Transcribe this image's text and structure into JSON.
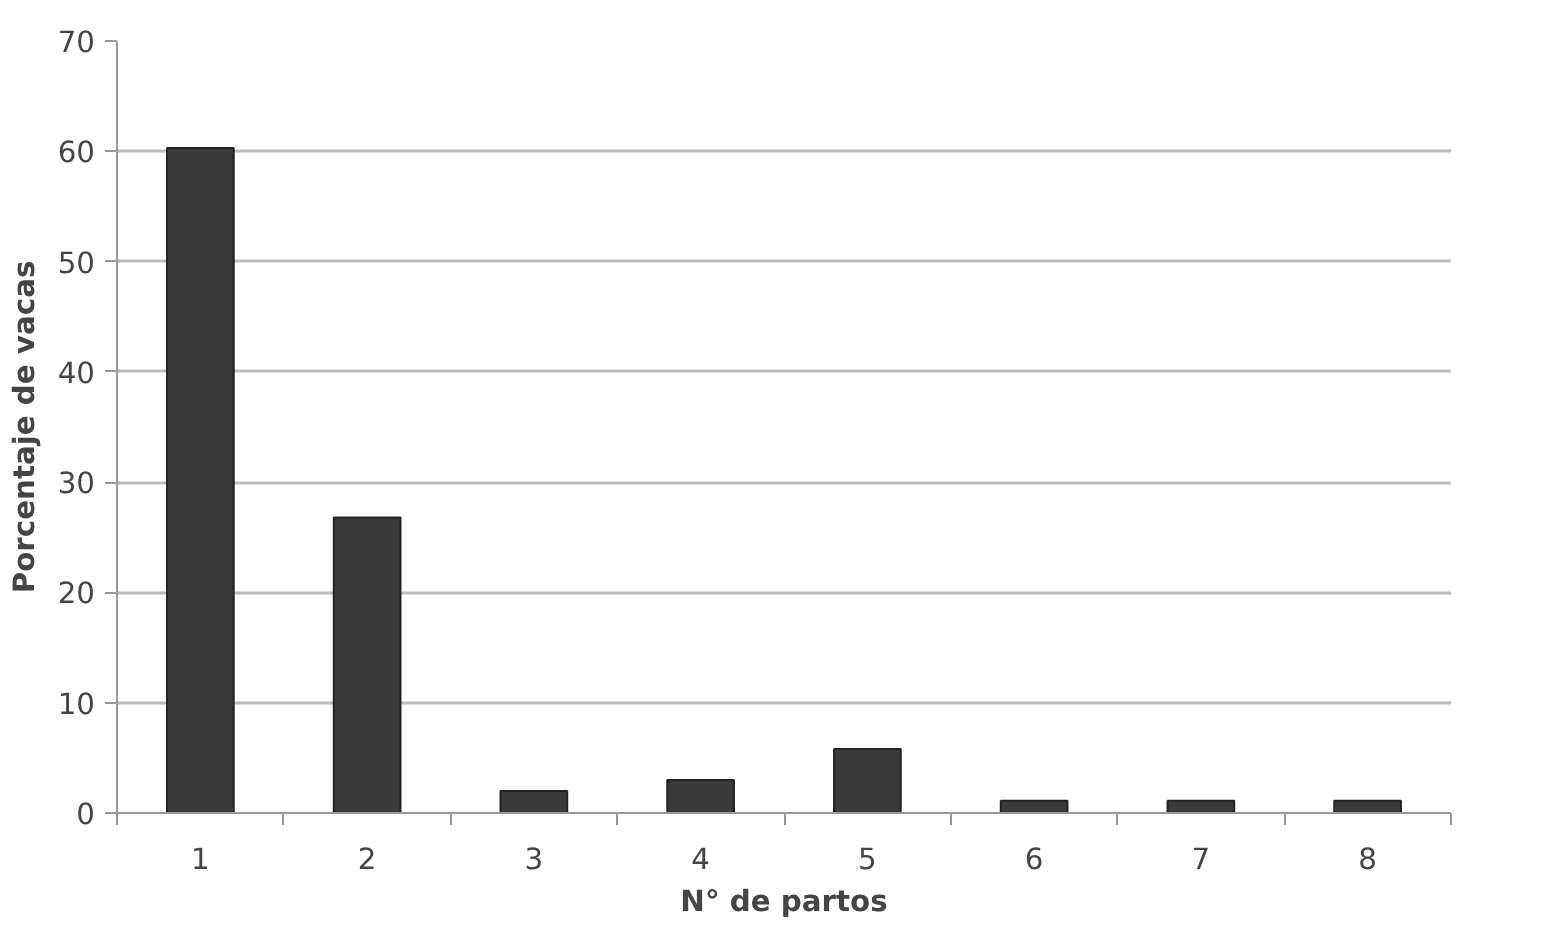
{
  "chart_data": {
    "type": "bar",
    "xlabel": "N° de partos",
    "ylabel": "Porcentaje de vacas",
    "categories": [
      "1",
      "2",
      "3",
      "4",
      "5",
      "6",
      "7",
      "8"
    ],
    "values": [
      60.3,
      26.8,
      2,
      3,
      5.8,
      1.1,
      1.1,
      1.1
    ],
    "color": "#3a3a3a",
    "ylim": [
      0,
      70
    ],
    "yticks": [
      0,
      10,
      20,
      30,
      40,
      50,
      60,
      70
    ],
    "grid": "y"
  }
}
